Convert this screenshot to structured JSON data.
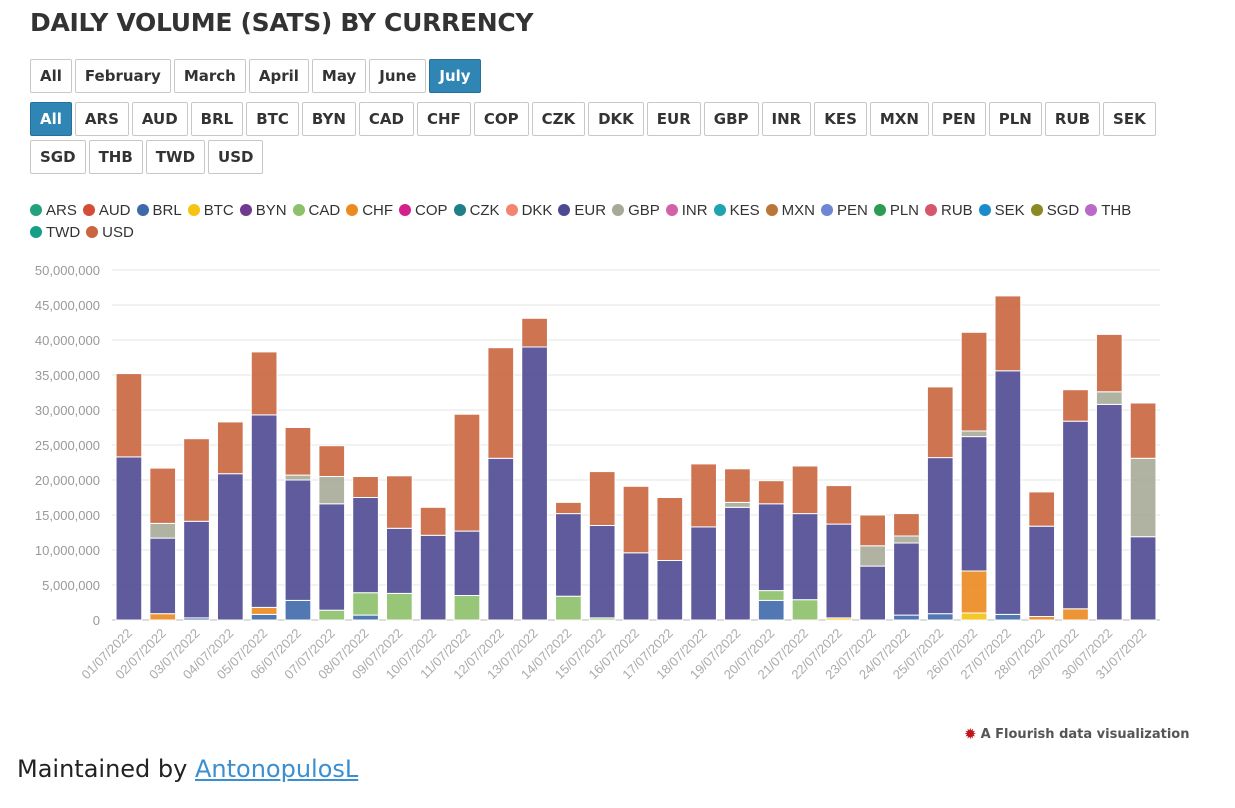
{
  "title": "DAILY VOLUME (SATS) BY CURRENCY",
  "month_filters": [
    "All",
    "February",
    "March",
    "April",
    "May",
    "June",
    "July"
  ],
  "month_active": "July",
  "currency_filters": [
    "All",
    "ARS",
    "AUD",
    "BRL",
    "BTC",
    "BYN",
    "CAD",
    "CHF",
    "COP",
    "CZK",
    "DKK",
    "EUR",
    "GBP",
    "INR",
    "KES",
    "MXN",
    "PEN",
    "PLN",
    "RUB",
    "SEK",
    "SGD",
    "THB",
    "TWD",
    "USD"
  ],
  "currency_active": "All",
  "credit": "A Flourish data visualization",
  "footer": {
    "prefix": "Maintained by ",
    "link_text": "AntonopulosL"
  },
  "chart_data": {
    "type": "bar",
    "stacked": true,
    "ylim": [
      0,
      50000000
    ],
    "yticks": [
      0,
      5000000,
      10000000,
      15000000,
      20000000,
      25000000,
      30000000,
      35000000,
      40000000,
      45000000,
      50000000
    ],
    "grid": true,
    "legend_position": "top",
    "legend": [
      {
        "name": "ARS",
        "color": "#23a17d"
      },
      {
        "name": "AUD",
        "color": "#d34d37"
      },
      {
        "name": "BRL",
        "color": "#3f6aaa"
      },
      {
        "name": "BTC",
        "color": "#f5c312"
      },
      {
        "name": "BYN",
        "color": "#6f3a8f"
      },
      {
        "name": "CAD",
        "color": "#8cc06a"
      },
      {
        "name": "CHF",
        "color": "#ec8a1f"
      },
      {
        "name": "COP",
        "color": "#d4208c"
      },
      {
        "name": "CZK",
        "color": "#1e7f86"
      },
      {
        "name": "DKK",
        "color": "#f4836f"
      },
      {
        "name": "EUR",
        "color": "#4e4a92"
      },
      {
        "name": "GBP",
        "color": "#a8aa98"
      },
      {
        "name": "INR",
        "color": "#d063a8"
      },
      {
        "name": "KES",
        "color": "#1fa3ae"
      },
      {
        "name": "MXN",
        "color": "#b9763a"
      },
      {
        "name": "PEN",
        "color": "#6f86d4"
      },
      {
        "name": "PLN",
        "color": "#2e9a52"
      },
      {
        "name": "RUB",
        "color": "#d6566a"
      },
      {
        "name": "SEK",
        "color": "#1a8ccc"
      },
      {
        "name": "SGD",
        "color": "#8b8a22"
      },
      {
        "name": "THB",
        "color": "#b96ac9"
      },
      {
        "name": "TWD",
        "color": "#169f86"
      },
      {
        "name": "USD",
        "color": "#c9663f"
      }
    ],
    "categories": [
      "01/07/2022",
      "02/07/2022",
      "03/07/2022",
      "04/07/2022",
      "05/07/2022",
      "06/07/2022",
      "07/07/2022",
      "08/07/2022",
      "09/07/2022",
      "10/07/2022",
      "11/07/2022",
      "12/07/2022",
      "13/07/2022",
      "14/07/2022",
      "15/07/2022",
      "16/07/2022",
      "17/07/2022",
      "18/07/2022",
      "19/07/2022",
      "20/07/2022",
      "21/07/2022",
      "22/07/2022",
      "23/07/2022",
      "24/07/2022",
      "25/07/2022",
      "26/07/2022",
      "27/07/2022",
      "28/07/2022",
      "29/07/2022",
      "30/07/2022",
      "31/07/2022"
    ],
    "series": [
      {
        "name": "BTC",
        "values": [
          0,
          0,
          0,
          0,
          0,
          0,
          0,
          0,
          0,
          0,
          0,
          0,
          0,
          0,
          0,
          0,
          0,
          0,
          0,
          0,
          0,
          300000,
          0,
          0,
          0,
          1000000,
          0,
          0,
          0,
          0,
          0
        ]
      },
      {
        "name": "BRL",
        "values": [
          0,
          0,
          300000,
          0,
          800000,
          2800000,
          0,
          700000,
          0,
          0,
          0,
          0,
          0,
          0,
          0,
          0,
          0,
          0,
          0,
          2800000,
          0,
          0,
          0,
          700000,
          900000,
          0,
          800000,
          0,
          0,
          0,
          0
        ]
      },
      {
        "name": "CHF",
        "values": [
          0,
          900000,
          0,
          0,
          1000000,
          0,
          0,
          0,
          0,
          0,
          0,
          0,
          0,
          0,
          0,
          0,
          0,
          0,
          0,
          0,
          0,
          0,
          0,
          0,
          0,
          6000000,
          0,
          500000,
          1600000,
          0,
          0
        ]
      },
      {
        "name": "CAD",
        "values": [
          0,
          0,
          0,
          0,
          0,
          0,
          1400000,
          3200000,
          3800000,
          0,
          3500000,
          0,
          0,
          3400000,
          300000,
          0,
          0,
          0,
          0,
          1400000,
          2900000,
          0,
          0,
          0,
          0,
          0,
          0,
          0,
          0,
          0,
          0
        ]
      },
      {
        "name": "EUR",
        "values": [
          23300000,
          10800000,
          13800000,
          20900000,
          27500000,
          17200000,
          15200000,
          13600000,
          9300000,
          12100000,
          9200000,
          23100000,
          39000000,
          11800000,
          13200000,
          9600000,
          8500000,
          13300000,
          16100000,
          12400000,
          12300000,
          13400000,
          7700000,
          10300000,
          22300000,
          19200000,
          34800000,
          12900000,
          26800000,
          30800000,
          11900000
        ]
      },
      {
        "name": "GBP",
        "values": [
          0,
          2100000,
          0,
          0,
          0,
          700000,
          3900000,
          0,
          0,
          0,
          0,
          0,
          0,
          0,
          0,
          0,
          0,
          0,
          700000,
          0,
          0,
          0,
          2900000,
          1000000,
          0,
          800000,
          0,
          0,
          0,
          1800000,
          11200000
        ]
      },
      {
        "name": "USD",
        "values": [
          11900000,
          7900000,
          11800000,
          7400000,
          9000000,
          6800000,
          4400000,
          3000000,
          7500000,
          4000000,
          16700000,
          15800000,
          4100000,
          1600000,
          7700000,
          9500000,
          9000000,
          9000000,
          4800000,
          3300000,
          6800000,
          5500000,
          4400000,
          3200000,
          10100000,
          14100000,
          10700000,
          4900000,
          4500000,
          8200000,
          7900000
        ]
      }
    ]
  }
}
